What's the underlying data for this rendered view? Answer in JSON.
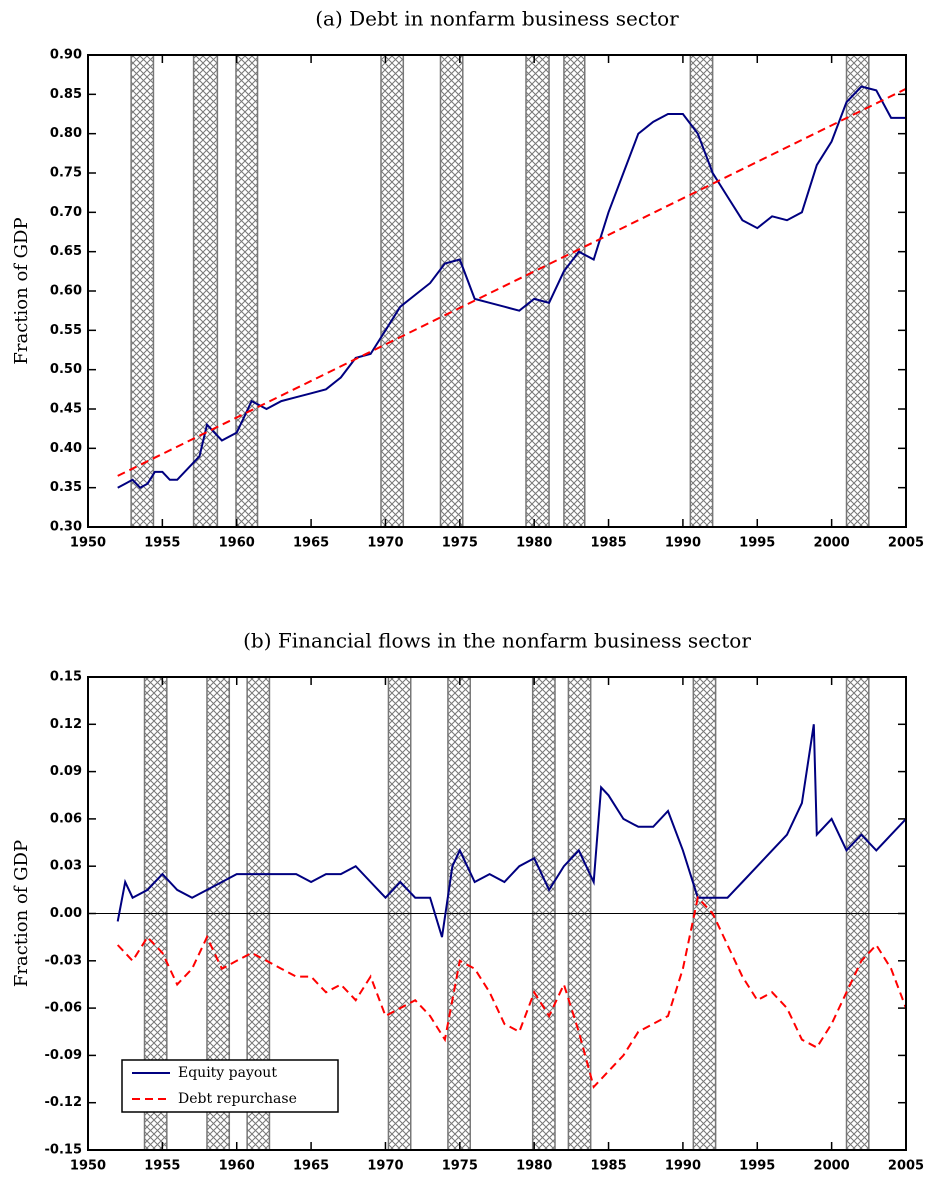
{
  "chart_data": [
    {
      "type": "line",
      "title": "(a) Debt in nonfarm business sector",
      "ylabel": "Fraction of GDP",
      "xlim": [
        1950,
        2005
      ],
      "xticks": [
        1950,
        1955,
        1960,
        1965,
        1970,
        1975,
        1980,
        1985,
        1990,
        1995,
        2000,
        2005
      ],
      "ylim": [
        0.3,
        0.9
      ],
      "yticks": [
        {
          "value": 0.3,
          "label": "0.30"
        },
        0.35,
        {
          "value": 0.4,
          "label": "0.40"
        },
        0.45,
        {
          "value": 0.5,
          "label": "0.50"
        },
        0.55,
        {
          "value": 0.6,
          "label": "0.60"
        },
        0.65,
        {
          "value": 0.7,
          "label": "0.70"
        },
        0.75,
        {
          "value": 0.8,
          "label": "0.80"
        },
        0.85,
        {
          "value": 0.9,
          "label": "0.90"
        }
      ],
      "recessions": [
        [
          1952.9,
          1954.4
        ],
        [
          1957.1,
          1958.7
        ],
        [
          1959.95,
          1961.4
        ],
        [
          1969.7,
          1971.2
        ],
        [
          1973.7,
          1975.2
        ],
        [
          1979.45,
          1981.0
        ],
        [
          1982.0,
          1983.4
        ],
        [
          1990.5,
          1992.0
        ],
        [
          2001.0,
          2002.5
        ]
      ],
      "series": [
        {
          "color": "#000080",
          "dash": false,
          "x": [
            1952,
            1953,
            1953.5,
            1954,
            1954.5,
            1955,
            1955.5,
            1956,
            1957,
            1957.5,
            1958,
            1958.5,
            1959,
            1960,
            1960.5,
            1961,
            1962,
            1963,
            1964,
            1965,
            1966,
            1967,
            1968,
            1969,
            1970,
            1971,
            1972,
            1973,
            1974,
            1975,
            1976,
            1977,
            1978,
            1979,
            1980,
            1981,
            1982,
            1983,
            1984,
            1985,
            1986,
            1987,
            1988,
            1989,
            1990,
            1991,
            1992,
            1993,
            1994,
            1995,
            1996,
            1997,
            1998,
            1999,
            2000,
            2001,
            2002,
            2003,
            2004,
            2005
          ],
          "values": [
            0.35,
            0.36,
            0.35,
            0.355,
            0.37,
            0.37,
            0.36,
            0.36,
            0.38,
            0.39,
            0.43,
            0.42,
            0.41,
            0.42,
            0.44,
            0.46,
            0.45,
            0.46,
            0.465,
            0.47,
            0.475,
            0.49,
            0.515,
            0.52,
            0.55,
            0.58,
            0.595,
            0.61,
            0.635,
            0.64,
            0.59,
            0.585,
            0.58,
            0.575,
            0.59,
            0.585,
            0.625,
            0.65,
            0.64,
            0.7,
            0.75,
            0.8,
            0.815,
            0.825,
            0.825,
            0.8,
            0.75,
            0.72,
            0.69,
            0.68,
            0.695,
            0.69,
            0.7,
            0.76,
            0.79,
            0.84,
            0.86,
            0.855,
            0.82,
            0.82
          ]
        },
        {
          "color": "#ff0000",
          "dash": true,
          "x": [
            1952,
            2005
          ],
          "values": [
            0.365,
            0.857
          ]
        }
      ]
    },
    {
      "type": "line",
      "title": "(b) Financial flows in the nonfarm business sector",
      "ylabel": "Fraction of GDP",
      "xlim": [
        1950,
        2005
      ],
      "xticks": [
        1950,
        1955,
        1960,
        1965,
        1970,
        1975,
        1980,
        1985,
        1990,
        1995,
        2000,
        2005
      ],
      "ylim": [
        -0.15,
        0.15
      ],
      "yticks": [
        -0.15,
        -0.12,
        -0.09,
        -0.06,
        -0.03,
        {
          "value": 0,
          "label": "0.00"
        },
        0.03,
        0.06,
        0.09,
        0.12,
        0.15
      ],
      "zero_line": true,
      "legend": "lower left",
      "recessions": [
        [
          1953.8,
          1955.3
        ],
        [
          1958.0,
          1959.5
        ],
        [
          1960.7,
          1962.2
        ],
        [
          1970.2,
          1971.7
        ],
        [
          1974.2,
          1975.7
        ],
        [
          1979.9,
          1981.4
        ],
        [
          1982.3,
          1983.8
        ],
        [
          1990.7,
          1992.2
        ],
        [
          2001.0,
          2002.5
        ]
      ],
      "series": [
        {
          "name": "Equity payout",
          "color": "#000080",
          "dash": false,
          "x": [
            1952,
            1952.5,
            1953,
            1954,
            1955,
            1956,
            1957,
            1958,
            1959,
            1960,
            1961,
            1962,
            1963,
            1964,
            1965,
            1966,
            1967,
            1968,
            1969,
            1970,
            1971,
            1972,
            1973,
            1973.8,
            1974.5,
            1975,
            1976,
            1977,
            1978,
            1979,
            1980,
            1981,
            1982,
            1983,
            1984,
            1984.5,
            1985,
            1986,
            1987,
            1988,
            1989,
            1990,
            1991,
            1992,
            1993,
            1994,
            1995,
            1996,
            1997,
            1998,
            1998.8,
            1999,
            2000,
            2001,
            2002,
            2003,
            2004,
            2005
          ],
          "values": [
            -0.005,
            0.02,
            0.01,
            0.015,
            0.025,
            0.015,
            0.01,
            0.015,
            0.02,
            0.025,
            0.025,
            0.025,
            0.025,
            0.025,
            0.02,
            0.025,
            0.025,
            0.03,
            0.02,
            0.01,
            0.02,
            0.01,
            0.01,
            -0.015,
            0.03,
            0.04,
            0.02,
            0.025,
            0.02,
            0.03,
            0.035,
            0.015,
            0.03,
            0.04,
            0.02,
            0.08,
            0.075,
            0.06,
            0.055,
            0.055,
            0.065,
            0.04,
            0.01,
            0.01,
            0.01,
            0.02,
            0.03,
            0.04,
            0.05,
            0.07,
            0.12,
            0.05,
            0.06,
            0.04,
            0.05,
            0.04,
            0.05,
            0.06
          ]
        },
        {
          "name": "Debt repurchase",
          "color": "#ff0000",
          "dash": true,
          "x": [
            1952,
            1953,
            1954,
            1955,
            1956,
            1957,
            1958,
            1959,
            1960,
            1961,
            1962,
            1963,
            1964,
            1965,
            1966,
            1967,
            1968,
            1969,
            1970,
            1971,
            1972,
            1973,
            1974,
            1975,
            1976,
            1977,
            1978,
            1979,
            1980,
            1981,
            1982,
            1983,
            1984,
            1985,
            1986,
            1987,
            1988,
            1989,
            1990,
            1991,
            1992,
            1993,
            1994,
            1995,
            1996,
            1997,
            1998,
            1999,
            2000,
            2001,
            2002,
            2003,
            2004,
            2005
          ],
          "values": [
            -0.02,
            -0.03,
            -0.015,
            -0.025,
            -0.045,
            -0.035,
            -0.015,
            -0.035,
            -0.03,
            -0.025,
            -0.03,
            -0.035,
            -0.04,
            -0.04,
            -0.05,
            -0.045,
            -0.055,
            -0.04,
            -0.065,
            -0.06,
            -0.055,
            -0.065,
            -0.08,
            -0.03,
            -0.035,
            -0.05,
            -0.07,
            -0.075,
            -0.05,
            -0.065,
            -0.045,
            -0.075,
            -0.11,
            -0.1,
            -0.09,
            -0.075,
            -0.07,
            -0.065,
            -0.035,
            0.01,
            0.0,
            -0.02,
            -0.04,
            -0.055,
            -0.05,
            -0.06,
            -0.08,
            -0.085,
            -0.07,
            -0.05,
            -0.03,
            -0.02,
            -0.035,
            -0.06
          ]
        }
      ]
    }
  ]
}
